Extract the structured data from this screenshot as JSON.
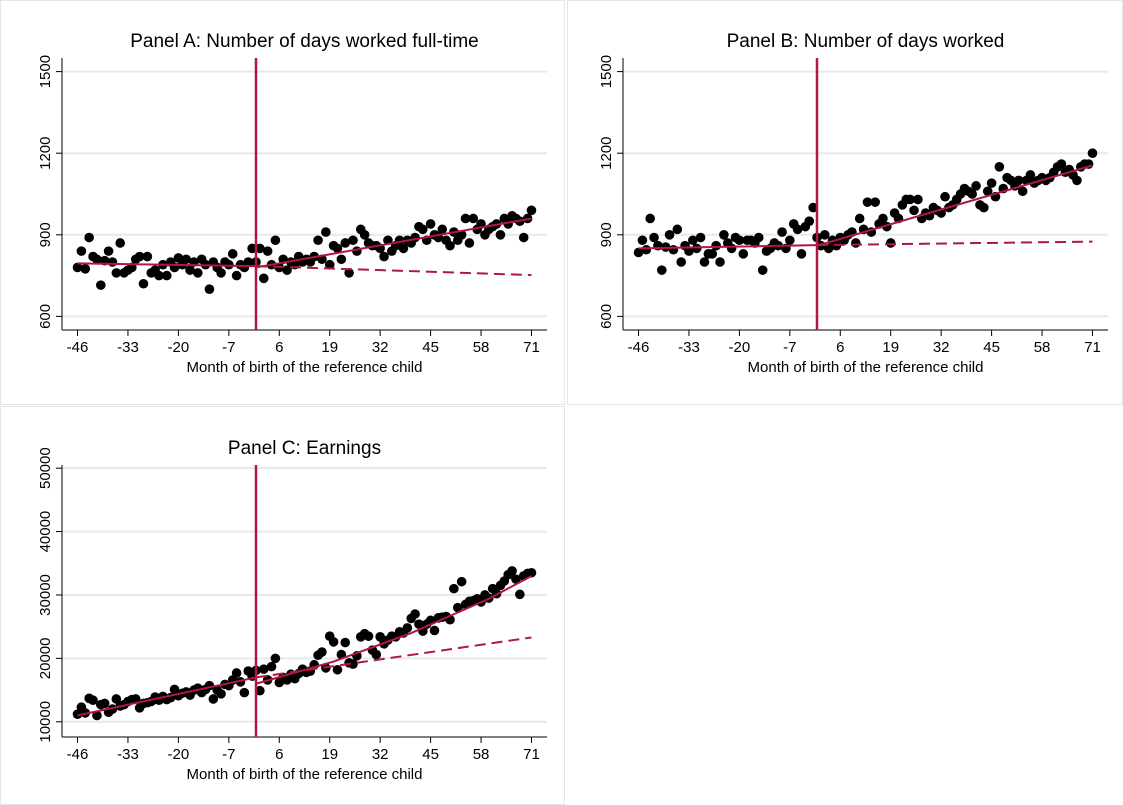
{
  "chart_data": [
    {
      "type": "scatter",
      "title": "Panel A: Number of days worked full-time",
      "xlabel": "Month of birth of the reference child",
      "x": [
        -46,
        -45,
        -44,
        -43,
        -42,
        -41,
        -40,
        -39,
        -38,
        -37,
        -36,
        -35,
        -34,
        -33,
        -32,
        -31,
        -30,
        -29,
        -28,
        -27,
        -26,
        -25,
        -24,
        -23,
        -22,
        -21,
        -20,
        -19,
        -18,
        -17,
        -16,
        -15,
        -14,
        -13,
        -12,
        -11,
        -10,
        -9,
        -8,
        -7,
        -6,
        -5,
        -4,
        -3,
        -2,
        -1,
        0,
        1,
        2,
        3,
        4,
        5,
        6,
        7,
        8,
        9,
        10,
        11,
        12,
        13,
        14,
        15,
        16,
        17,
        18,
        19,
        20,
        21,
        22,
        23,
        24,
        25,
        26,
        27,
        28,
        29,
        30,
        31,
        32,
        33,
        34,
        35,
        36,
        37,
        38,
        39,
        40,
        41,
        42,
        43,
        44,
        45,
        46,
        47,
        48,
        49,
        50,
        51,
        52,
        53,
        54,
        55,
        56,
        57,
        58,
        59,
        60,
        61,
        62,
        63,
        64,
        65,
        66,
        67,
        68,
        69,
        70,
        71
      ],
      "values": [
        780,
        840,
        775,
        890,
        820,
        810,
        715,
        805,
        840,
        800,
        760,
        870,
        760,
        770,
        780,
        810,
        820,
        720,
        820,
        760,
        770,
        750,
        790,
        750,
        800,
        780,
        815,
        790,
        810,
        770,
        800,
        760,
        810,
        790,
        700,
        800,
        780,
        760,
        800,
        790,
        830,
        750,
        790,
        780,
        800,
        850,
        800,
        850,
        740,
        840,
        790,
        880,
        780,
        810,
        770,
        800,
        790,
        820,
        800,
        810,
        800,
        820,
        880,
        810,
        910,
        790,
        860,
        850,
        810,
        870,
        760,
        880,
        840,
        920,
        900,
        870,
        860,
        860,
        850,
        820,
        880,
        840,
        860,
        880,
        850,
        880,
        870,
        890,
        930,
        920,
        880,
        940,
        900,
        890,
        920,
        880,
        860,
        910,
        880,
        900,
        960,
        870,
        960,
        920,
        940,
        900,
        920,
        930,
        940,
        900,
        960,
        940,
        970,
        960,
        950,
        890,
        960,
        990
      ],
      "color": "#000000",
      "lines": [
        {
          "x": [
            -46,
            0
          ],
          "values": [
            795,
            785
          ],
          "color": "#b2173f",
          "dash": false
        },
        {
          "x": [
            0,
            71
          ],
          "values": [
            780,
            960
          ],
          "color": "#b2173f",
          "dash": false
        },
        {
          "x": [
            0,
            71
          ],
          "values": [
            785,
            752
          ],
          "color": "#b2173f",
          "dash": true
        }
      ],
      "vline": {
        "x": 0,
        "color": "#b2173f"
      },
      "xlim": [
        -50,
        75
      ],
      "ylim": [
        550,
        1550
      ],
      "xticks": [
        -46,
        -33,
        -20,
        -7,
        6,
        19,
        32,
        45,
        58,
        71
      ],
      "yticks": [
        600,
        900,
        1200,
        1500
      ],
      "grid": true
    },
    {
      "type": "scatter",
      "title": "Panel B: Number of days worked",
      "xlabel": "Month of birth of the reference child",
      "x": [
        -46,
        -45,
        -44,
        -43,
        -42,
        -41,
        -40,
        -39,
        -38,
        -37,
        -36,
        -35,
        -34,
        -33,
        -32,
        -31,
        -30,
        -29,
        -28,
        -27,
        -26,
        -25,
        -24,
        -23,
        -22,
        -21,
        -20,
        -19,
        -18,
        -17,
        -16,
        -15,
        -14,
        -13,
        -12,
        -11,
        -10,
        -9,
        -8,
        -7,
        -6,
        -5,
        -4,
        -3,
        -2,
        -1,
        0,
        1,
        2,
        3,
        4,
        5,
        6,
        7,
        8,
        9,
        10,
        11,
        12,
        13,
        14,
        15,
        16,
        17,
        18,
        19,
        20,
        21,
        22,
        23,
        24,
        25,
        26,
        27,
        28,
        29,
        30,
        31,
        32,
        33,
        34,
        35,
        36,
        37,
        38,
        39,
        40,
        41,
        42,
        43,
        44,
        45,
        46,
        47,
        48,
        49,
        50,
        51,
        52,
        53,
        54,
        55,
        56,
        57,
        58,
        59,
        60,
        61,
        62,
        63,
        64,
        65,
        66,
        67,
        68,
        69,
        70,
        71
      ],
      "values": [
        835,
        880,
        845,
        960,
        890,
        860,
        770,
        855,
        900,
        845,
        920,
        800,
        860,
        840,
        880,
        850,
        890,
        800,
        830,
        830,
        860,
        800,
        900,
        870,
        850,
        890,
        880,
        830,
        880,
        880,
        870,
        890,
        770,
        840,
        850,
        870,
        860,
        910,
        850,
        880,
        940,
        920,
        830,
        930,
        950,
        1000,
        890,
        860,
        900,
        850,
        880,
        860,
        890,
        880,
        900,
        910,
        870,
        960,
        920,
        1020,
        910,
        1020,
        940,
        960,
        930,
        870,
        980,
        960,
        1010,
        1030,
        1030,
        990,
        1030,
        960,
        980,
        970,
        1000,
        990,
        980,
        1040,
        1000,
        1010,
        1030,
        1050,
        1070,
        1060,
        1050,
        1080,
        1010,
        1000,
        1060,
        1090,
        1040,
        1150,
        1070,
        1110,
        1100,
        1080,
        1100,
        1060,
        1100,
        1120,
        1090,
        1100,
        1110,
        1100,
        1110,
        1130,
        1150,
        1160,
        1130,
        1140,
        1120,
        1100,
        1150,
        1160,
        1160,
        1200
      ],
      "color": "#000000",
      "lines": [
        {
          "x": [
            -46,
            0
          ],
          "values": [
            850,
            862
          ],
          "color": "#b2173f",
          "dash": false
        },
        {
          "x": [
            0,
            71
          ],
          "values": [
            860,
            1155
          ],
          "color": "#b2173f",
          "dash": false
        },
        {
          "x": [
            0,
            71
          ],
          "values": [
            862,
            875
          ],
          "color": "#b2173f",
          "dash": true
        }
      ],
      "vline": {
        "x": 0,
        "color": "#b2173f"
      },
      "xlim": [
        -50,
        75
      ],
      "ylim": [
        550,
        1550
      ],
      "xticks": [
        -46,
        -33,
        -20,
        -7,
        6,
        19,
        32,
        45,
        58,
        71
      ],
      "yticks": [
        600,
        900,
        1200,
        1500
      ],
      "grid": true
    },
    {
      "type": "scatter",
      "title": "Panel C: Earnings",
      "xlabel": "Month of birth of the reference child",
      "x": [
        -46,
        -45,
        -44,
        -43,
        -42,
        -41,
        -40,
        -39,
        -38,
        -37,
        -36,
        -35,
        -34,
        -33,
        -32,
        -31,
        -30,
        -29,
        -28,
        -27,
        -26,
        -25,
        -24,
        -23,
        -22,
        -21,
        -20,
        -19,
        -18,
        -17,
        -16,
        -15,
        -14,
        -13,
        -12,
        -11,
        -10,
        -9,
        -8,
        -7,
        -6,
        -5,
        -4,
        -3,
        -2,
        -1,
        0,
        1,
        2,
        3,
        4,
        5,
        6,
        7,
        8,
        9,
        10,
        11,
        12,
        13,
        14,
        15,
        16,
        17,
        18,
        19,
        20,
        21,
        22,
        23,
        24,
        25,
        26,
        27,
        28,
        29,
        30,
        31,
        32,
        33,
        34,
        35,
        36,
        37,
        38,
        39,
        40,
        41,
        42,
        43,
        44,
        45,
        46,
        47,
        48,
        49,
        50,
        51,
        52,
        53,
        54,
        55,
        56,
        57,
        58,
        59,
        60,
        61,
        62,
        63,
        64,
        65,
        66,
        67,
        68,
        69,
        70,
        71
      ],
      "values": [
        11200,
        12300,
        11400,
        13700,
        13400,
        11000,
        12700,
        12900,
        11500,
        12000,
        13600,
        12500,
        12700,
        13200,
        13500,
        13600,
        12200,
        12900,
        13000,
        13200,
        13900,
        13400,
        14000,
        13500,
        13800,
        15100,
        14100,
        14500,
        14700,
        14200,
        15000,
        15300,
        14600,
        15100,
        15700,
        13600,
        15000,
        14400,
        15900,
        15700,
        16600,
        17700,
        16300,
        14600,
        18000,
        17200,
        18100,
        14900,
        18300,
        16600,
        18700,
        20000,
        16200,
        17000,
        16600,
        17500,
        16800,
        17600,
        18300,
        17800,
        18000,
        19000,
        20500,
        21000,
        18500,
        23500,
        22600,
        18200,
        20600,
        22500,
        19300,
        19100,
        20400,
        23400,
        23900,
        23500,
        21300,
        20600,
        23400,
        22300,
        22900,
        23500,
        23400,
        24200,
        24000,
        24800,
        26300,
        27000,
        25400,
        24300,
        25400,
        26000,
        24400,
        26400,
        26500,
        26600,
        26100,
        31000,
        28000,
        32100,
        28500,
        29000,
        29100,
        29400,
        28900,
        30000,
        29500,
        31000,
        30200,
        31500,
        32200,
        33200,
        33800,
        32500,
        30100,
        33000,
        33400,
        33500
      ],
      "color": "#000000",
      "lines": [
        {
          "x": [
            -46,
            0
          ],
          "values": [
            11000,
            17000
          ],
          "color": "#b2173f",
          "dash": false
        },
        {
          "x": [
            0,
            20,
            40,
            60,
            71
          ],
          "values": [
            16000,
            19500,
            24000,
            29400,
            33000
          ],
          "color": "#b2173f",
          "dash": false
        },
        {
          "x": [
            0,
            71
          ],
          "values": [
            17000,
            23300
          ],
          "color": "#b2173f",
          "dash": true
        }
      ],
      "vline": {
        "x": 0,
        "color": "#b2173f"
      },
      "xlim": [
        -50,
        75
      ],
      "ylim": [
        7600,
        50500
      ],
      "xticks": [
        -46,
        -33,
        -20,
        -7,
        6,
        19,
        32,
        45,
        58,
        71
      ],
      "yticks": [
        10000,
        20000,
        30000,
        40000,
        50000
      ],
      "grid": true
    }
  ]
}
